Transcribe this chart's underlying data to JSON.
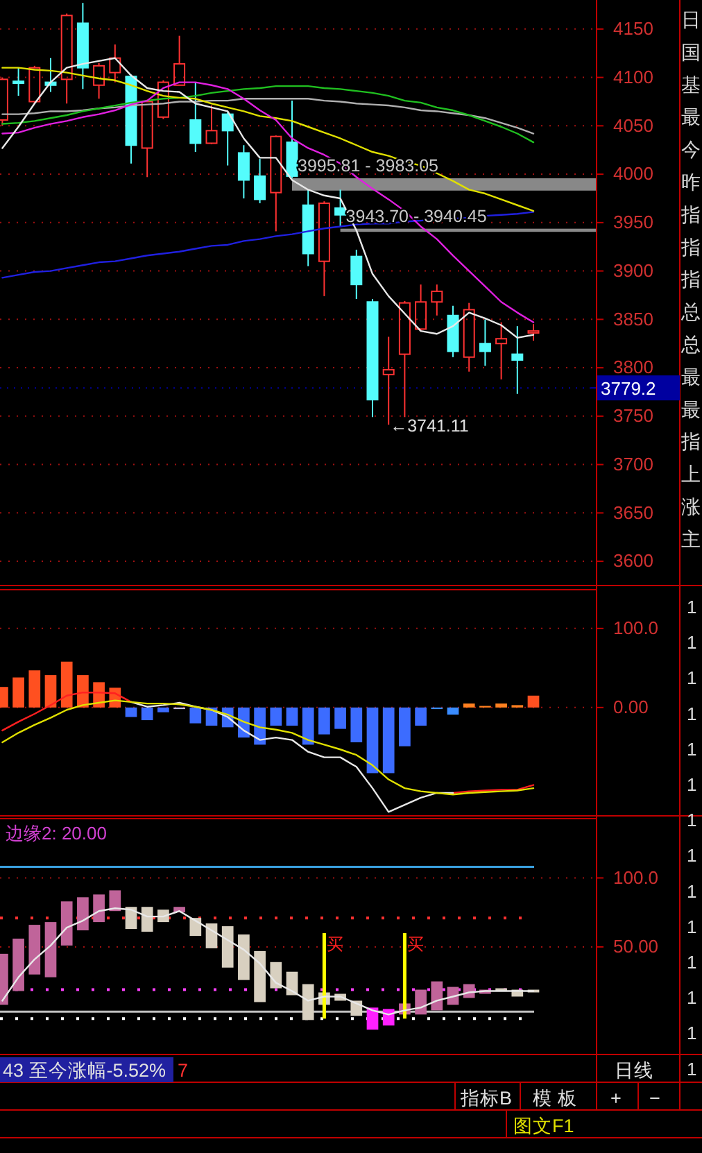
{
  "chart_data": [
    {
      "type": "candlestick",
      "categories": [
        null,
        null,
        null,
        null,
        null,
        null,
        null,
        null,
        null,
        null,
        null,
        null,
        null,
        null,
        null,
        null,
        null,
        null,
        null,
        null,
        null,
        null,
        null,
        null,
        null,
        null,
        null,
        null,
        null,
        null,
        null,
        null,
        null,
        null
      ],
      "ohlc": [
        [
          4056,
          4100,
          4050,
          4098
        ],
        [
          4096,
          4110,
          4081,
          4094
        ],
        [
          4075,
          4112,
          4073,
          4110
        ],
        [
          4095,
          4120,
          4085,
          4092
        ],
        [
          4098,
          4166,
          4073,
          4164
        ],
        [
          4156,
          4177,
          4088,
          4110
        ],
        [
          4092,
          4115,
          4078,
          4112
        ],
        [
          4105,
          4134,
          4095,
          4120
        ],
        [
          4101,
          4103,
          4011,
          4030
        ],
        [
          4027,
          4077,
          3997,
          4075
        ],
        [
          4059,
          4097,
          4057,
          4095
        ],
        [
          4092,
          4143,
          4092,
          4114
        ],
        [
          4056,
          4095,
          4023,
          4032
        ],
        [
          4032,
          4071,
          4031,
          4045
        ],
        [
          4062,
          4064,
          4009,
          4045
        ],
        [
          4022,
          4030,
          3975,
          3994
        ],
        [
          3998,
          4016,
          3970,
          3974
        ],
        [
          3981,
          4040,
          3941,
          4039
        ],
        [
          4033,
          4076,
          3996,
          3998
        ],
        [
          3968,
          3984,
          3905,
          3918
        ],
        [
          3910,
          3972,
          3874,
          3970
        ],
        [
          3965,
          3984,
          3946,
          3958
        ],
        [
          3915,
          3922,
          3871,
          3886
        ],
        [
          3868,
          3871,
          3749,
          3767
        ],
        [
          3793,
          3832,
          3741.11,
          3798
        ],
        [
          3814,
          3869,
          3749,
          3867
        ],
        [
          3840,
          3886,
          3838,
          3868
        ],
        [
          3868,
          3886,
          3854,
          3879
        ],
        [
          3854,
          3864,
          3811,
          3817
        ],
        [
          3811,
          3867,
          3796,
          3860
        ],
        [
          3825,
          3850,
          3802,
          3817
        ],
        [
          3825,
          3847,
          3788,
          3830
        ],
        [
          3814,
          3843,
          3773,
          3808
        ],
        [
          3836,
          3845,
          3828,
          3838
        ]
      ],
      "colors": [
        "#ff3232",
        "#54fcfc",
        "#ff3232",
        "#54fcfc",
        "#ff3232",
        "#54fcfc",
        "#ff3232",
        "#ff3232",
        "#54fcfc",
        "#ff3232",
        "#ff3232",
        "#ff3232",
        "#54fcfc",
        "#ff3232",
        "#54fcfc",
        "#54fcfc",
        "#54fcfc",
        "#ff3232",
        "#54fcfc",
        "#54fcfc",
        "#ff3232",
        "#54fcfc",
        "#54fcfc",
        "#54fcfc",
        "#ff3232",
        "#ff3232",
        "#ff3232",
        "#ff3232",
        "#54fcfc",
        "#ff3232",
        "#54fcfc",
        "#ff3232",
        "#54fcfc",
        "#ff3232"
      ],
      "series": [
        {
          "type": "line",
          "color": "#2020e0",
          "values": [
            3893,
            3896,
            3899,
            3900,
            3903,
            3906,
            3909,
            3910,
            3913,
            3916,
            3918,
            3920,
            3923,
            3926,
            3927,
            3931,
            3933,
            3936,
            3938,
            3941,
            3944,
            3946,
            3948,
            3949,
            3949,
            3951,
            3952,
            3954,
            3954,
            3955,
            3957,
            3958,
            3959,
            3961
          ]
        },
        {
          "type": "line",
          "color": "#b0b0b0",
          "values": [
            4062,
            4062,
            4063,
            4065,
            4065,
            4066,
            4068,
            4069,
            4071,
            4072,
            4073,
            4075,
            4075,
            4076,
            4076,
            4078,
            4078,
            4078,
            4078,
            4078,
            4076,
            4075,
            4073,
            4072,
            4071,
            4069,
            4066,
            4065,
            4063,
            4061,
            4058,
            4053,
            4048,
            4042
          ]
        },
        {
          "type": "line",
          "color": "#20c020",
          "values": [
            4052,
            4053,
            4055,
            4058,
            4061,
            4065,
            4068,
            4071,
            4074,
            4076,
            4078,
            4079,
            4081,
            4084,
            4086,
            4088,
            4089,
            4091,
            4091,
            4091,
            4089,
            4088,
            4086,
            4084,
            4081,
            4076,
            4074,
            4069,
            4066,
            4061,
            4055,
            4049,
            4042,
            4033
          ]
        },
        {
          "type": "line",
          "color": "#e0e000",
          "values": [
            4110,
            4110,
            4108,
            4107,
            4105,
            4102,
            4099,
            4097,
            4092,
            4086,
            4081,
            4079,
            4078,
            4073,
            4069,
            4065,
            4060,
            4058,
            4055,
            4049,
            4043,
            4037,
            4030,
            4023,
            4019,
            4013,
            4009,
            4001,
            3993,
            3984,
            3980,
            3974,
            3968,
            3962
          ]
        },
        {
          "type": "line",
          "color": "#e020e0",
          "values": [
            4042,
            4043,
            4048,
            4052,
            4055,
            4059,
            4062,
            4066,
            4072,
            4076,
            4089,
            4095,
            4095,
            4092,
            4088,
            4078,
            4066,
            4056,
            4037,
            4027,
            4020,
            4011,
            3997,
            3985,
            3974,
            3962,
            3946,
            3933,
            3916,
            3900,
            3884,
            3868,
            3857,
            3847
          ]
        },
        {
          "type": "line",
          "color": "#e8e8e8",
          "values": [
            4027,
            4049,
            4073,
            4095,
            4110,
            4114,
            4117,
            4120,
            4102,
            4089,
            4086,
            4085,
            4073,
            4069,
            4065,
            4037,
            4017,
            4017,
            3994,
            3984,
            3978,
            3975,
            3942,
            3897,
            3874,
            3856,
            3838,
            3835,
            3843,
            3857,
            3851,
            3844,
            3831,
            3834
          ]
        }
      ],
      "ylim": [
        3575,
        4180
      ],
      "yticks": [
        3600,
        3650,
        3700,
        3750,
        3800,
        3850,
        3900,
        3950,
        4000,
        4050,
        4100,
        4150
      ],
      "grid": "y",
      "tick_labels": "y",
      "bands": [
        {
          "axis": "y",
          "from": 3983.05,
          "to": 3995.81,
          "label": "3995.81 - 3983.05",
          "color": "#a0a0a0"
        },
        {
          "axis": "y",
          "from": 3940.45,
          "to": 3943.7,
          "label": "3943.70 - 3940.45",
          "color": "#a0a0a0"
        }
      ],
      "ref_lines": [
        {
          "axis": "y",
          "value": 3779.2,
          "label": "3779.2",
          "color": "#0000a0"
        }
      ],
      "annotations": [
        "←3741.11"
      ]
    },
    {
      "type": "bar",
      "categories": [
        null,
        null,
        null,
        null,
        null,
        null,
        null,
        null,
        null,
        null,
        null,
        null,
        null,
        null,
        null,
        null,
        null,
        null,
        null,
        null,
        null,
        null,
        null,
        null,
        null,
        null,
        null,
        null,
        null,
        null,
        null,
        null,
        null,
        null
      ],
      "series": [
        {
          "type": "bar",
          "values": [
            26,
            38,
            47,
            41,
            58,
            41,
            32,
            25,
            -12,
            -16,
            -6,
            -2,
            -20,
            -23,
            -25,
            -38,
            -47,
            -23,
            -23,
            -47,
            -34,
            -27,
            -44,
            -83,
            -83,
            -49,
            -23,
            -2,
            -9,
            5,
            2,
            5,
            3,
            15
          ],
          "colors": [
            "#ff5020",
            "#ff5020",
            "#ff5020",
            "#ff5020",
            "#ff5020",
            "#ff5020",
            "#ff5020",
            "#ff5020",
            "#3c6cff",
            "#3c6cff",
            "#3c6cff",
            "#c0c0e0",
            "#3c6cff",
            "#3c6cff",
            "#3c6cff",
            "#3c6cff",
            "#3c6cff",
            "#3c6cff",
            "#3c6cff",
            "#3c6cff",
            "#3c6cff",
            "#3c6cff",
            "#3c6cff",
            "#3c6cff",
            "#3c6cff",
            "#3c6cff",
            "#3c6cff",
            "#3a8cff",
            "#3a8cff",
            "#ff8020",
            "#ff8020",
            "#ff8020",
            "#ff8020",
            "#ff5020"
          ]
        },
        {
          "type": "line",
          "color": "#ff2020",
          "values": [
            -29,
            -18,
            -8,
            3,
            15,
            19,
            19,
            18,
            7,
            null,
            null,
            null,
            null,
            null,
            null,
            null,
            null,
            null,
            null,
            null,
            null,
            null,
            null,
            null,
            null,
            null,
            null,
            null,
            -108,
            -106,
            -105,
            -104,
            -104,
            -98
          ]
        },
        {
          "type": "line",
          "color": "#e8e8e8",
          "values": [
            null,
            null,
            null,
            null,
            null,
            null,
            null,
            null,
            7,
            1,
            3,
            6,
            1,
            -3,
            -12,
            -29,
            -41,
            -38,
            -41,
            -56,
            -63,
            -63,
            -75,
            -102,
            -132,
            -123,
            -114,
            -108,
            -108,
            null,
            null,
            null,
            null,
            null
          ]
        },
        {
          "type": "line",
          "color": "#e0e000",
          "values": [
            -44,
            -32,
            -22,
            -13,
            -3,
            3,
            6,
            9,
            7,
            5,
            5,
            4,
            1,
            -3,
            -9,
            -18,
            -25,
            -28,
            -32,
            -41,
            -47,
            -53,
            -60,
            -73,
            -91,
            -102,
            -106,
            -108,
            -110,
            -108,
            -107,
            -106,
            -105,
            -102
          ]
        }
      ],
      "ylim": [
        -137,
        149
      ],
      "yticks": [
        {
          "value": 0,
          "label": "0.00"
        },
        {
          "value": 100,
          "label": "100.0"
        }
      ],
      "grid": "y",
      "tick_labels": "y"
    },
    {
      "type": "bar",
      "title": "边缘2: 20.00",
      "categories": [
        null,
        null,
        null,
        null,
        null,
        null,
        null,
        null,
        null,
        null,
        null,
        null,
        null,
        null,
        null,
        null,
        null,
        null,
        null,
        null,
        null,
        null,
        null,
        null,
        null,
        null,
        null,
        null,
        null,
        null,
        null,
        null,
        null,
        null
      ],
      "series": [
        {
          "type": "bar",
          "base": [
            8,
            18,
            30,
            28,
            51,
            62,
            68,
            76,
            63,
            61,
            68,
            75,
            58,
            49,
            35,
            26,
            10,
            20,
            15,
            -3,
            8,
            11,
            0,
            -10,
            -7,
            1,
            1,
            4,
            8,
            13,
            16,
            18,
            14,
            17
          ],
          "values": [
            37,
            38,
            36,
            40,
            32,
            24,
            20,
            15,
            16,
            18,
            9,
            4,
            13,
            18,
            30,
            33,
            37,
            19,
            17,
            26,
            9,
            5,
            11,
            16,
            12,
            8,
            18,
            21,
            13,
            10,
            3,
            2,
            5,
            2
          ],
          "colors": [
            "#c0649a",
            "#c0649a",
            "#c0649a",
            "#c0649a",
            "#c0649a",
            "#c0649a",
            "#c0649a",
            "#c0649a",
            "#d8d0c0",
            "#d8d0c0",
            "#d8d0c0",
            "#c0649a",
            "#d8d0c0",
            "#d8d0c0",
            "#d8d0c0",
            "#d8d0c0",
            "#d8d0c0",
            "#d8d0c0",
            "#d8d0c0",
            "#d8d0c0",
            "#d8d0c0",
            "#d8d0c0",
            "#d8d0c0",
            "#ff20ff",
            "#ff20ff",
            "#c0649a",
            "#c0649a",
            "#c0649a",
            "#c0649a",
            "#c0649a",
            "#c0649a",
            "#d8d0c0",
            "#d8d0c0",
            "#d8d0c0"
          ]
        },
        {
          "type": "bar",
          "color": "#ffff00",
          "base": [
            null,
            null,
            null,
            null,
            null,
            null,
            null,
            null,
            null,
            null,
            null,
            null,
            null,
            null,
            null,
            null,
            null,
            null,
            null,
            null,
            -2,
            null,
            null,
            null,
            null,
            -2,
            null,
            null,
            null,
            null,
            null,
            null,
            null,
            null
          ],
          "values": [
            null,
            null,
            null,
            null,
            null,
            null,
            null,
            null,
            null,
            null,
            null,
            null,
            null,
            null,
            null,
            null,
            null,
            null,
            null,
            null,
            62,
            null,
            null,
            null,
            null,
            62,
            null,
            null,
            null,
            null,
            null,
            null,
            null,
            null
          ],
          "value_labels": [
            null,
            null,
            null,
            null,
            null,
            null,
            null,
            null,
            null,
            null,
            null,
            null,
            null,
            null,
            null,
            null,
            null,
            null,
            null,
            null,
            "买",
            null,
            null,
            null,
            null,
            "买",
            null,
            null,
            null,
            null,
            null,
            null,
            null,
            null
          ]
        },
        {
          "type": "line",
          "color": "#e8e8e8",
          "values": [
            11,
            28,
            41,
            51,
            64,
            69,
            76,
            78,
            77,
            72,
            72,
            76,
            69,
            62,
            55,
            48,
            38,
            24,
            18,
            11,
            14,
            14,
            9,
            4,
            1,
            4,
            6,
            11,
            14,
            17,
            18,
            18,
            18,
            18
          ]
        }
      ],
      "ylim": [
        -28,
        143
      ],
      "yticks": [
        {
          "value": 50,
          "label": "50.00"
        },
        {
          "value": 100,
          "label": "100.0"
        }
      ],
      "grid": "y",
      "tick_labels": "y",
      "ref_lines": [
        {
          "axis": "y",
          "value": 108,
          "color": "#3aa0e0",
          "line_style": "solid"
        },
        {
          "axis": "y",
          "value": 71,
          "color": "#ff3030",
          "line_style": "dotted"
        },
        {
          "axis": "y",
          "value": 19,
          "color": "#ff40ff",
          "line_style": "dotted"
        },
        {
          "axis": "y",
          "value": 3,
          "color": "#c0c0c0",
          "line_style": "solid"
        },
        {
          "axis": "y",
          "value": -2,
          "color": "#ffffff",
          "line_style": "dotted"
        }
      ]
    },
    {
      "type": "other",
      "annotations": [
        "日",
        "国",
        "基",
        "最",
        "今",
        "昨",
        "指",
        "指",
        "指",
        "总",
        "总",
        "最",
        "最",
        "指",
        "上",
        "涨",
        "主"
      ]
    },
    {
      "type": "other",
      "annotations": [
        "1",
        "1",
        "1",
        "1",
        "1",
        "1",
        "1",
        "1",
        "1",
        "1",
        "1",
        "1",
        "1",
        "1"
      ]
    },
    {
      "type": "other",
      "annotations": [
        "43 至今涨幅-5.52%",
        "7",
        "日线",
        "指标B",
        "模 板",
        "+",
        "−",
        "图文F1"
      ]
    }
  ]
}
